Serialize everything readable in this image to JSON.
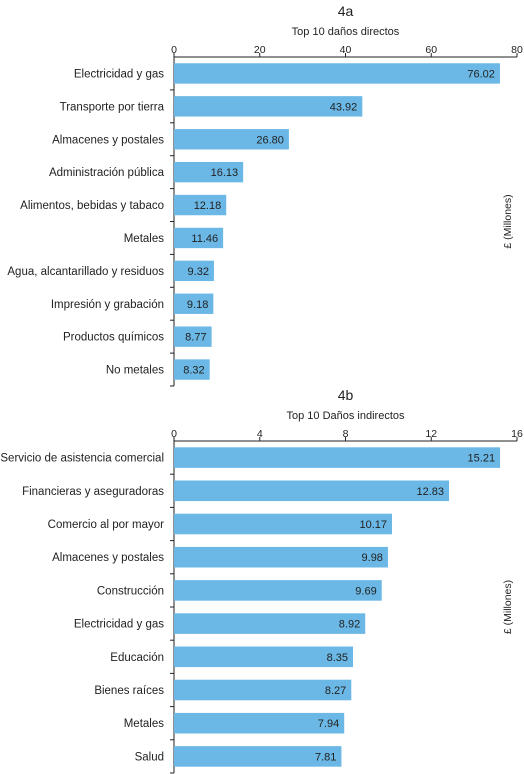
{
  "chart_data": [
    {
      "type": "bar",
      "orientation": "horizontal",
      "panel": "4a",
      "title": "Top 10 daños directos",
      "unit_label": "£ (Millones)",
      "xlim": [
        0,
        80
      ],
      "ticks": [
        "0",
        "20",
        "40",
        "60",
        "80"
      ],
      "categories": [
        "Electricidad y gas",
        "Transporte por tierra",
        "Almacenes y postales",
        "Administración pública",
        "Alimentos, bebidas y tabaco",
        "Metales",
        "Agua, alcantarillado y residuos",
        "Impresión y grabación",
        "Productos químicos",
        "No metales"
      ],
      "values": [
        76.02,
        43.92,
        26.8,
        16.13,
        12.18,
        11.46,
        9.32,
        9.18,
        8.77,
        8.32
      ],
      "value_labels": [
        "76.02",
        "43.92",
        "26.80",
        "16.13",
        "12.18",
        "11.46",
        "9.32",
        "9.18",
        "8.77",
        "8.32"
      ],
      "bar_color": "#6bb8e6"
    },
    {
      "type": "bar",
      "orientation": "horizontal",
      "panel": "4b",
      "title": "Top 10 Daños indirectos",
      "unit_label": "£ (Millones)",
      "xlim": [
        0,
        16
      ],
      "ticks": [
        "0",
        "4",
        "8",
        "12",
        "16"
      ],
      "categories": [
        "Servicio de asistencia comercial",
        "Financieras y aseguradoras",
        "Comercio al por mayor",
        "Almacenes y postales",
        "Construcción",
        "Electricidad y gas",
        "Educación",
        "Bienes raíces",
        "Metales",
        "Salud"
      ],
      "values": [
        15.21,
        12.83,
        10.17,
        9.98,
        9.69,
        8.92,
        8.35,
        8.27,
        7.94,
        7.81
      ],
      "value_labels": [
        "15.21",
        "12.83",
        "10.17",
        "9.98",
        "9.69",
        "8.92",
        "8.35",
        "8.27",
        "7.94",
        "7.81"
      ],
      "bar_color": "#6bb8e6"
    }
  ]
}
